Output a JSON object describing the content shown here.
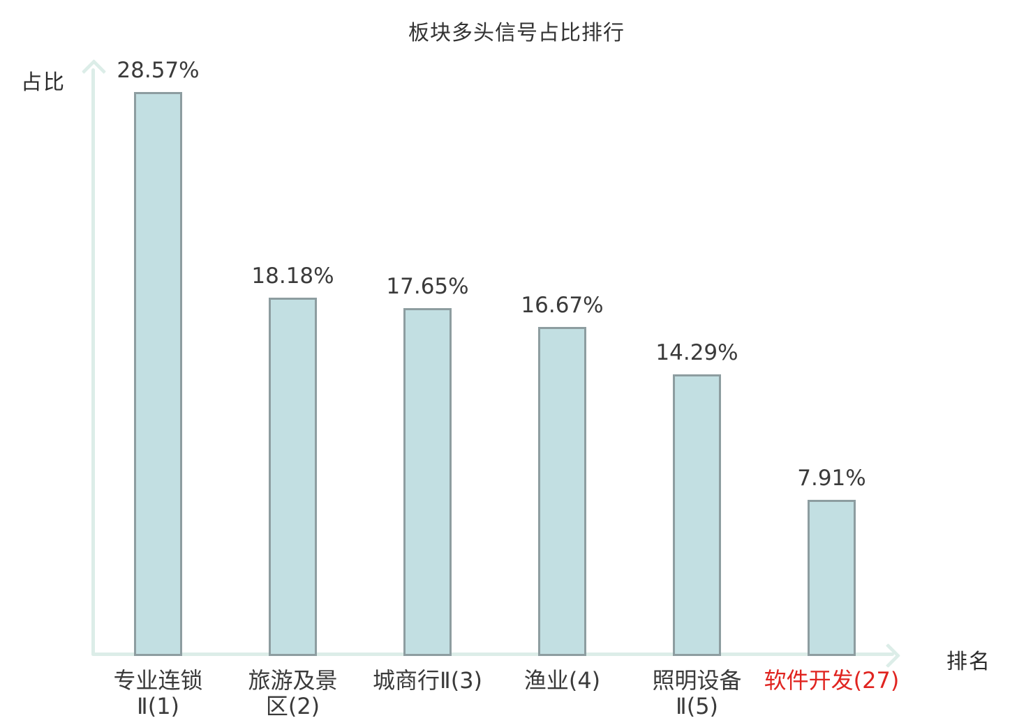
{
  "chart_data": {
    "type": "bar",
    "title": "板块多头信号占比排行",
    "xlabel": "排名",
    "ylabel": "占比",
    "categories": [
      "专业连锁Ⅱ(1)",
      "旅游及景区(2)",
      "城商行Ⅱ(3)",
      "渔业(4)",
      "照明设备Ⅱ(5)",
      "软件开发(27)"
    ],
    "category_lines": [
      [
        "专业连锁",
        "Ⅱ(1)"
      ],
      [
        "旅游及景",
        "区(2)"
      ],
      [
        "城商行Ⅱ(3)"
      ],
      [
        "渔业(4)"
      ],
      [
        "照明设备",
        "Ⅱ(5)"
      ],
      [
        "软件开发(27)"
      ]
    ],
    "values": [
      28.57,
      18.18,
      17.65,
      16.67,
      14.29,
      7.91
    ],
    "value_labels": [
      "28.57%",
      "18.18%",
      "17.65%",
      "16.67%",
      "14.29%",
      "7.91%"
    ],
    "highlight_index": 5,
    "ylim": [
      0,
      30
    ],
    "grid": false,
    "legend": false,
    "colors": {
      "bar_fill": "#c2dfe2",
      "bar_border": "#8d9da0",
      "axis": "#dcede8",
      "text": "#3a3a3a",
      "highlight_text": "#e02420",
      "background": "#ffffff"
    }
  }
}
